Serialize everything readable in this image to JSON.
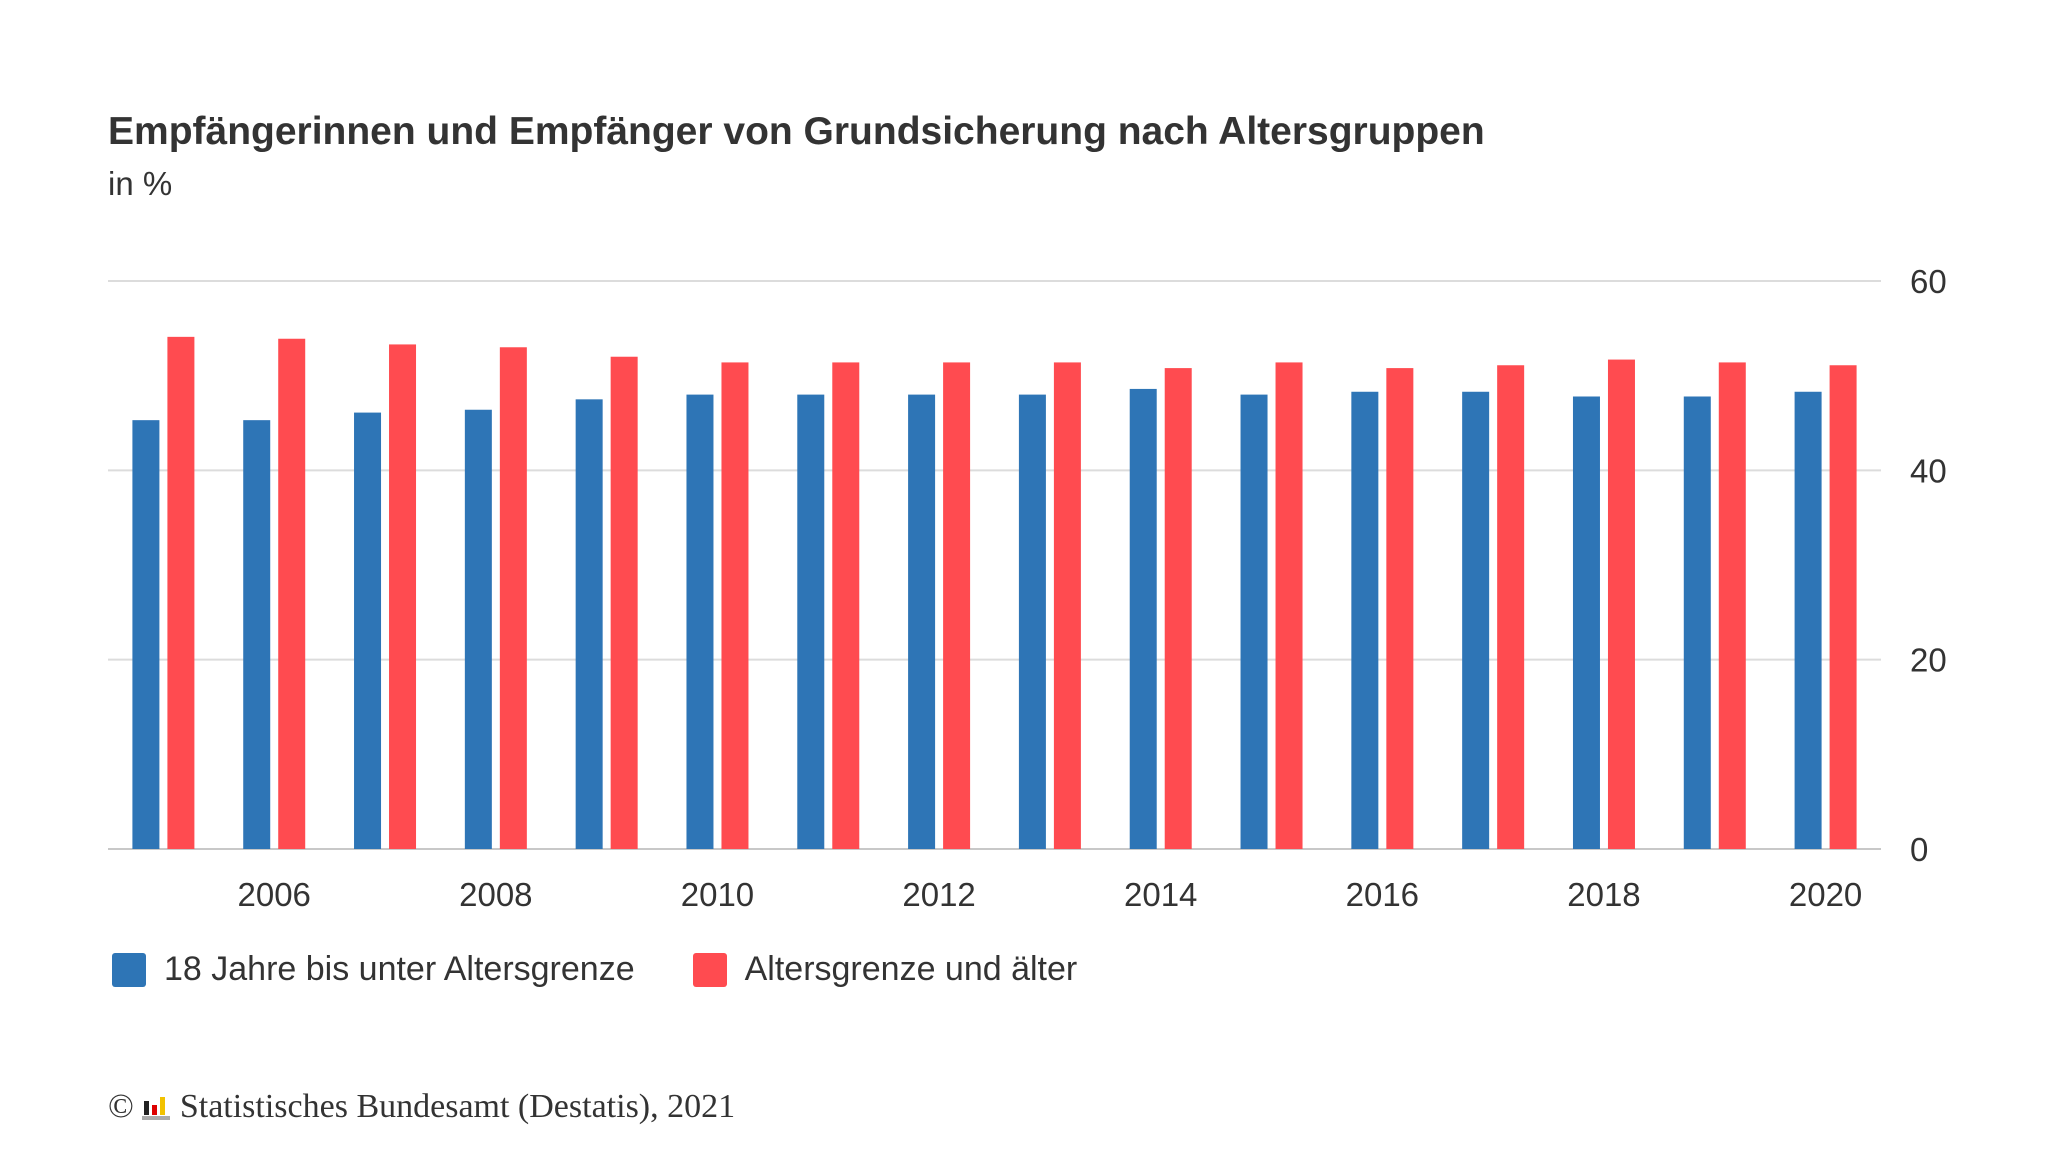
{
  "chart_data": {
    "type": "bar",
    "title": "Empfängerinnen und Empfänger von Grundsicherung nach Altersgruppen",
    "subtitle": "in %",
    "categories": [
      "2005",
      "2006",
      "2007",
      "2008",
      "2009",
      "2010",
      "2011",
      "2012",
      "2013",
      "2014",
      "2015",
      "2016",
      "2017",
      "2018",
      "2019",
      "2020"
    ],
    "x_tick_labels": [
      "2006",
      "2008",
      "2010",
      "2012",
      "2014",
      "2016",
      "2018",
      "2020"
    ],
    "y_tick_labels": [
      "0",
      "20",
      "40",
      "60"
    ],
    "ylim": [
      0,
      60
    ],
    "y_axis_position": "right",
    "grid": true,
    "legend_position": "bottom-left",
    "series": [
      {
        "name": "18 Jahre bis unter Altersgrenze",
        "color": "#2e75b6",
        "values": [
          45.3,
          45.3,
          46.1,
          46.4,
          47.5,
          48.0,
          48.0,
          48.0,
          48.0,
          48.6,
          48.0,
          48.3,
          48.3,
          47.8,
          47.8,
          48.3
        ]
      },
      {
        "name": "Altersgrenze und älter",
        "color": "#ff4b50",
        "values": [
          54.1,
          53.9,
          53.3,
          53.0,
          52.0,
          51.4,
          51.4,
          51.4,
          51.4,
          50.8,
          51.4,
          50.8,
          51.1,
          51.7,
          51.4,
          51.1
        ]
      }
    ]
  },
  "footer": {
    "copyright": "©",
    "text": "Statistisches Bundesamt (Destatis), 2021"
  }
}
